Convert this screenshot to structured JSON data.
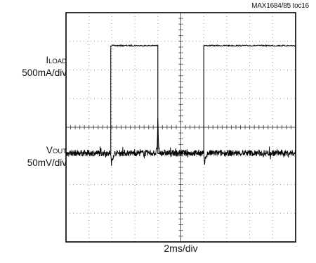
{
  "chart_data": {
    "type": "line",
    "reference": "MAX1684/85 toc16",
    "xlabel": "2ms/div",
    "grid": true,
    "divisions": {
      "x": 10,
      "y": 8
    },
    "channels": [
      {
        "name_main": "I",
        "name_sub": "LOAD",
        "scale": "500mA/div",
        "levels_div": {
          "low": 3.1,
          "high": 6.85
        },
        "transitions_div": [
          [
            1.95,
            "rise"
          ],
          [
            4.0,
            "fall"
          ],
          [
            6.0,
            "rise"
          ]
        ]
      },
      {
        "name_main": "V",
        "name_sub": "OUT",
        "scale": "50mV/div",
        "baseline_div": 3.1,
        "events": [
          {
            "t_div": 1.95,
            "kind": "dip",
            "amp_div": -0.75
          },
          {
            "t_div": 4.0,
            "kind": "spike",
            "amp_div": 1.4
          },
          {
            "t_div": 6.0,
            "kind": "dip",
            "amp_div": -0.75
          }
        ]
      }
    ]
  }
}
